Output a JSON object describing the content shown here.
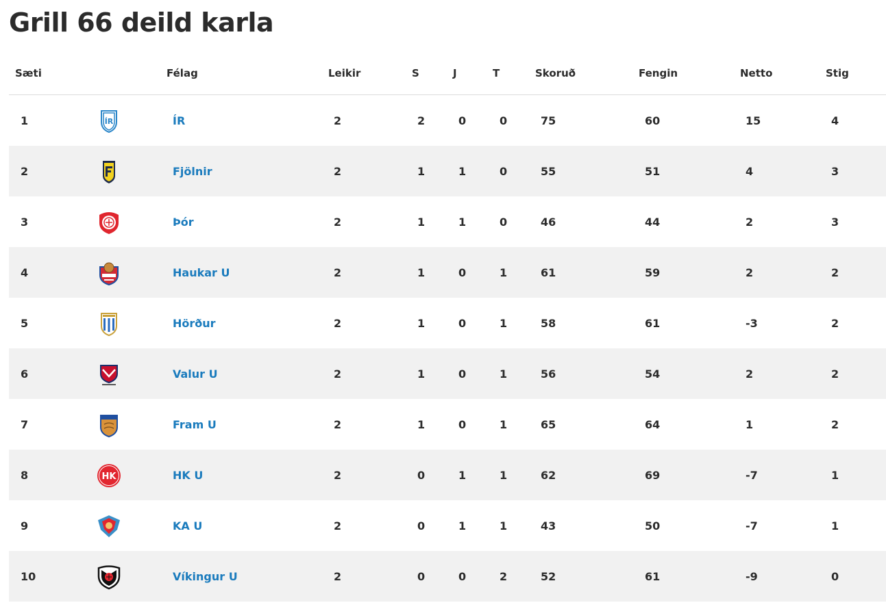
{
  "page": {
    "title": "Grill 66 deild karla"
  },
  "table": {
    "headers": {
      "position": "Sæti",
      "club": "Félag",
      "games": "Leikir",
      "wins": "S",
      "draws": "J",
      "losses": "T",
      "goals_for": "Skoruð",
      "goals_against": "Fengin",
      "net": "Netto",
      "points": "Stig"
    },
    "rows": [
      {
        "position": "1",
        "club": "ÍR",
        "logo": "ir-crest-icon",
        "games": "2",
        "wins": "2",
        "draws": "0",
        "losses": "0",
        "goals_for": "75",
        "goals_against": "60",
        "net": "15",
        "points": "4"
      },
      {
        "position": "2",
        "club": "Fjölnir",
        "logo": "fjolnir-crest-icon",
        "games": "2",
        "wins": "1",
        "draws": "1",
        "losses": "0",
        "goals_for": "55",
        "goals_against": "51",
        "net": "4",
        "points": "3"
      },
      {
        "position": "3",
        "club": "Þór",
        "logo": "thor-crest-icon",
        "games": "2",
        "wins": "1",
        "draws": "1",
        "losses": "0",
        "goals_for": "46",
        "goals_against": "44",
        "net": "2",
        "points": "3"
      },
      {
        "position": "4",
        "club": "Haukar U",
        "logo": "haukar-crest-icon",
        "games": "2",
        "wins": "1",
        "draws": "0",
        "losses": "1",
        "goals_for": "61",
        "goals_against": "59",
        "net": "2",
        "points": "2"
      },
      {
        "position": "5",
        "club": "Hörður",
        "logo": "hordur-crest-icon",
        "games": "2",
        "wins": "1",
        "draws": "0",
        "losses": "1",
        "goals_for": "58",
        "goals_against": "61",
        "net": "-3",
        "points": "2"
      },
      {
        "position": "6",
        "club": "Valur U",
        "logo": "valur-crest-icon",
        "games": "2",
        "wins": "1",
        "draws": "0",
        "losses": "1",
        "goals_for": "56",
        "goals_against": "54",
        "net": "2",
        "points": "2"
      },
      {
        "position": "7",
        "club": "Fram U",
        "logo": "fram-crest-icon",
        "games": "2",
        "wins": "1",
        "draws": "0",
        "losses": "1",
        "goals_for": "65",
        "goals_against": "64",
        "net": "1",
        "points": "2"
      },
      {
        "position": "8",
        "club": "HK U",
        "logo": "hk-crest-icon",
        "games": "2",
        "wins": "0",
        "draws": "1",
        "losses": "1",
        "goals_for": "62",
        "goals_against": "69",
        "net": "-7",
        "points": "1"
      },
      {
        "position": "9",
        "club": "KA U",
        "logo": "ka-crest-icon",
        "games": "2",
        "wins": "0",
        "draws": "1",
        "losses": "1",
        "goals_for": "43",
        "goals_against": "50",
        "net": "-7",
        "points": "1"
      },
      {
        "position": "10",
        "club": "Víkingur U",
        "logo": "vikingur-crest-icon",
        "games": "2",
        "wins": "0",
        "draws": "0",
        "losses": "2",
        "goals_for": "52",
        "goals_against": "61",
        "net": "-9",
        "points": "0"
      }
    ]
  },
  "colors": {
    "link": "#1a7bbd",
    "row_alt": "#f1f1f1",
    "text": "#2b2b2b"
  }
}
